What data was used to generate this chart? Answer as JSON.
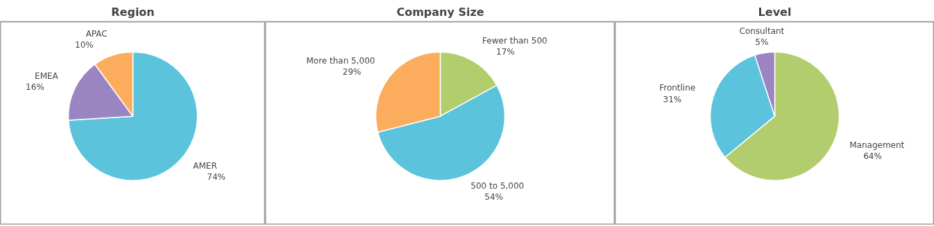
{
  "chart_data": [
    {
      "type": "pie",
      "title": "Region",
      "categories": [
        "AMER",
        "EMEA",
        "APAC"
      ],
      "values": [
        74,
        16,
        10
      ],
      "value_labels": [
        "74%",
        "16%",
        "10%"
      ],
      "colors": [
        "#5bc4dc",
        "#9b84c2",
        "#fbac5c"
      ],
      "legend": false
    },
    {
      "type": "pie",
      "title": "Company Size",
      "categories": [
        "Fewer than 500",
        "500 to 5,000",
        "More than 5,000"
      ],
      "values": [
        17,
        54,
        29
      ],
      "value_labels": [
        "17%",
        "54%",
        "29%"
      ],
      "colors": [
        "#b2cd6e",
        "#5bc4dc",
        "#fbac5c"
      ],
      "legend": false
    },
    {
      "type": "pie",
      "title": "Level",
      "categories": [
        "Management",
        "Frontline",
        "Consultant"
      ],
      "values": [
        64,
        31,
        5
      ],
      "value_labels": [
        "64%",
        "31%",
        "5%"
      ],
      "colors": [
        "#b2cd6e",
        "#5bc4dc",
        "#9b84c2"
      ],
      "legend": false
    }
  ]
}
